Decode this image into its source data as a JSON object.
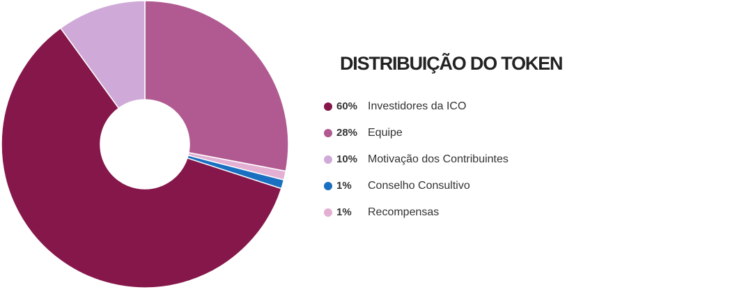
{
  "chart_data": {
    "type": "donut",
    "title": "DISTRIBUIÇÃO DO TOKEN",
    "categories": [
      "Investidores da ICO",
      "Equipe",
      "Motivação dos Contribuintes",
      "Conselho Consultivo",
      "Recompensas"
    ],
    "values": [
      60,
      28,
      10,
      1,
      1
    ],
    "value_labels": [
      "60%",
      "28%",
      "10%",
      "1%",
      "1%"
    ],
    "colors": [
      "#85174a",
      "#b05a91",
      "#cfaad8",
      "#1a6fc0",
      "#e3b0d3"
    ]
  }
}
